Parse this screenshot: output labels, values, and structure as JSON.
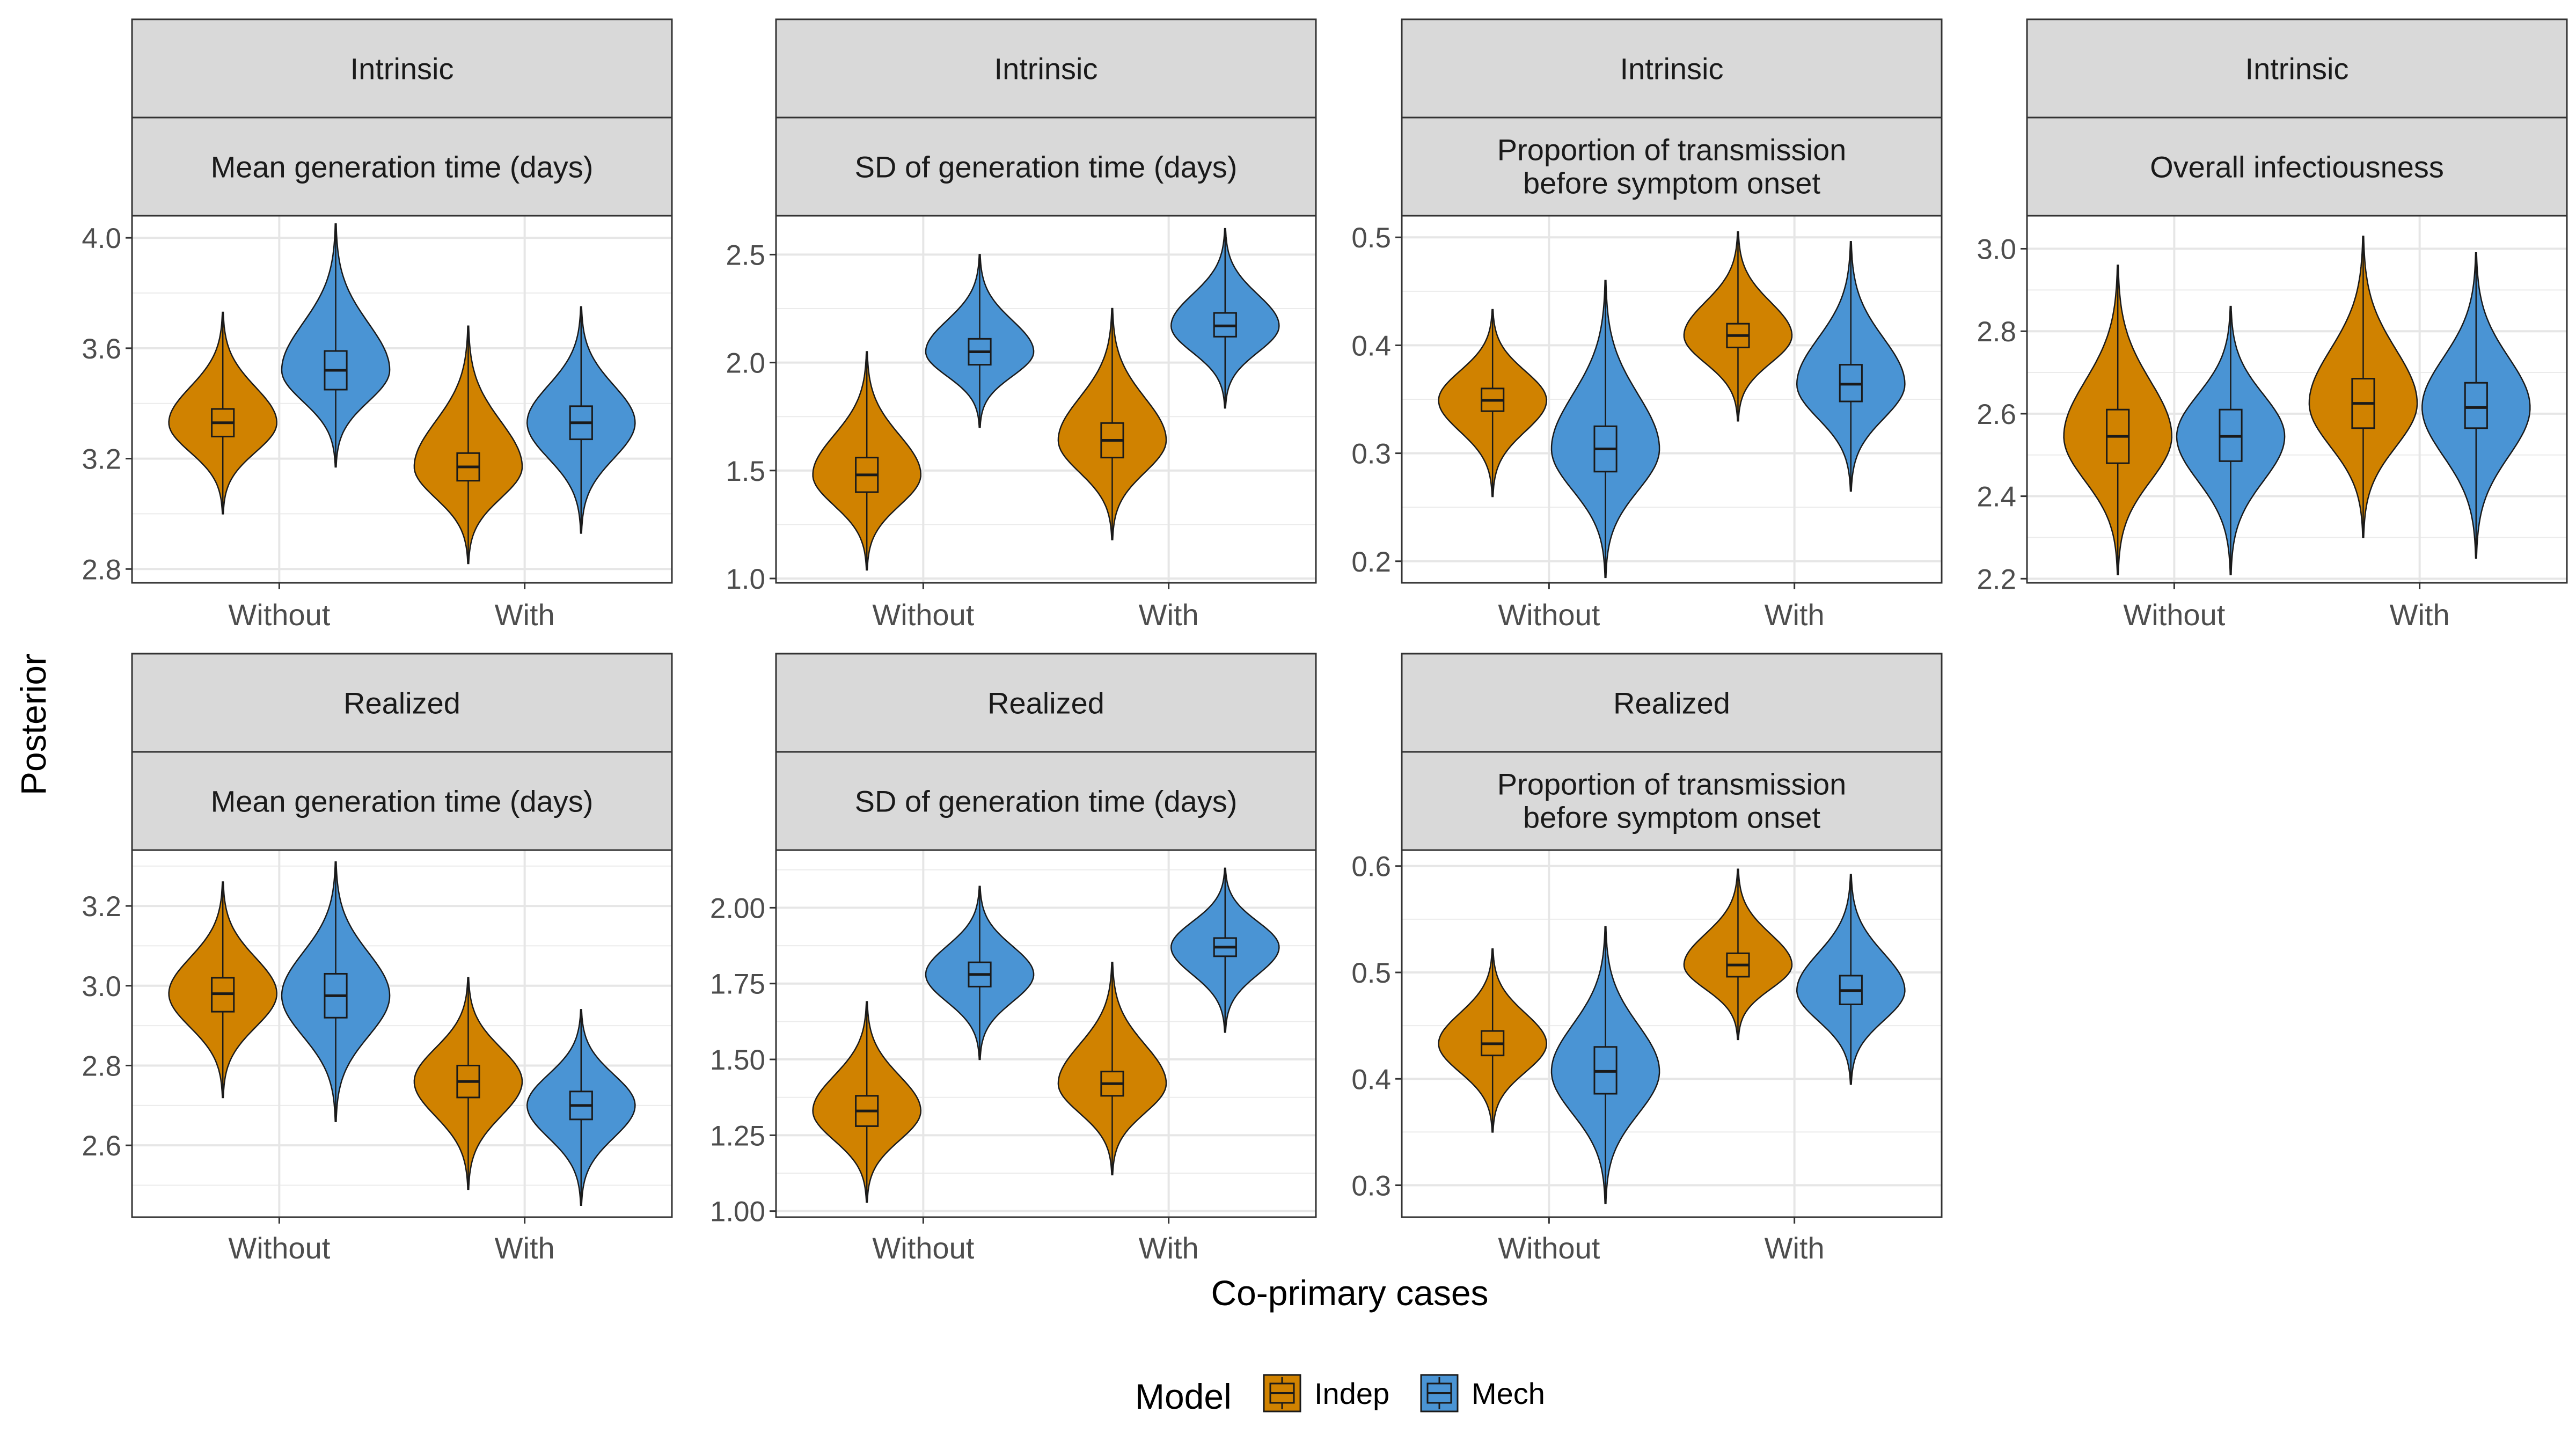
{
  "chart_data": {
    "type": "violin",
    "xlabel": "Co-primary cases",
    "ylabel": "Posterior",
    "categories": [
      "Without",
      "With"
    ],
    "legend": {
      "title": "Model",
      "position": "bottom",
      "items": [
        {
          "name": "Indep",
          "color": "#D08200"
        },
        {
          "name": "Mech",
          "color": "#4A94D4"
        }
      ]
    },
    "grid": true,
    "panels": [
      {
        "strip_top": "Intrinsic",
        "strip_bottom": "Mean generation time (days)",
        "ylim": [
          2.75,
          4.08
        ],
        "yticks": [
          2.8,
          3.2,
          3.6,
          4.0
        ],
        "ytick_labels": [
          "2.8",
          "3.2",
          "3.6",
          "4.0"
        ],
        "series": [
          {
            "name": "Indep",
            "groups": [
              {
                "category": "Without",
                "min": 3.0,
                "q1": 3.28,
                "median": 3.33,
                "q3": 3.38,
                "max": 3.73
              },
              {
                "category": "With",
                "min": 2.82,
                "q1": 3.12,
                "median": 3.17,
                "q3": 3.22,
                "max": 3.68
              }
            ]
          },
          {
            "name": "Mech",
            "groups": [
              {
                "category": "Without",
                "min": 3.17,
                "q1": 3.45,
                "median": 3.52,
                "q3": 3.59,
                "max": 4.05
              },
              {
                "category": "With",
                "min": 2.93,
                "q1": 3.27,
                "median": 3.33,
                "q3": 3.39,
                "max": 3.75
              }
            ]
          }
        ]
      },
      {
        "strip_top": "Intrinsic",
        "strip_bottom": "SD of generation time (days)",
        "ylim": [
          0.98,
          2.68
        ],
        "yticks": [
          1.0,
          1.5,
          2.0,
          2.5
        ],
        "ytick_labels": [
          "1.0",
          "1.5",
          "2.0",
          "2.5"
        ],
        "series": [
          {
            "name": "Indep",
            "groups": [
              {
                "category": "Without",
                "min": 1.04,
                "q1": 1.4,
                "median": 1.48,
                "q3": 1.56,
                "max": 2.05
              },
              {
                "category": "With",
                "min": 1.18,
                "q1": 1.56,
                "median": 1.64,
                "q3": 1.72,
                "max": 2.25
              }
            ]
          },
          {
            "name": "Mech",
            "groups": [
              {
                "category": "Without",
                "min": 1.7,
                "q1": 1.99,
                "median": 2.05,
                "q3": 2.11,
                "max": 2.5
              },
              {
                "category": "With",
                "min": 1.79,
                "q1": 2.12,
                "median": 2.17,
                "q3": 2.23,
                "max": 2.62
              }
            ]
          }
        ]
      },
      {
        "strip_top": "Intrinsic",
        "strip_bottom": "Proportion of transmission before symptom onset",
        "ylim": [
          0.18,
          0.52
        ],
        "yticks": [
          0.2,
          0.3,
          0.4,
          0.5
        ],
        "ytick_labels": [
          "0.2",
          "0.3",
          "0.4",
          "0.5"
        ],
        "series": [
          {
            "name": "Indep",
            "groups": [
              {
                "category": "Without",
                "min": 0.26,
                "q1": 0.339,
                "median": 0.349,
                "q3": 0.36,
                "max": 0.433
              },
              {
                "category": "With",
                "min": 0.33,
                "q1": 0.398,
                "median": 0.409,
                "q3": 0.42,
                "max": 0.505
              }
            ]
          },
          {
            "name": "Mech",
            "groups": [
              {
                "category": "Without",
                "min": 0.185,
                "q1": 0.283,
                "median": 0.304,
                "q3": 0.325,
                "max": 0.46
              },
              {
                "category": "With",
                "min": 0.265,
                "q1": 0.348,
                "median": 0.364,
                "q3": 0.382,
                "max": 0.496
              }
            ]
          }
        ]
      },
      {
        "strip_top": "Intrinsic",
        "strip_bottom": "Overall infectiousness",
        "ylim": [
          2.19,
          3.08
        ],
        "yticks": [
          2.2,
          2.4,
          2.6,
          2.8,
          3.0
        ],
        "ytick_labels": [
          "2.2",
          "2.4",
          "2.6",
          "2.8",
          "3.0"
        ],
        "series": [
          {
            "name": "Indep",
            "groups": [
              {
                "category": "Without",
                "min": 2.21,
                "q1": 2.48,
                "median": 2.545,
                "q3": 2.61,
                "max": 2.96
              },
              {
                "category": "With",
                "min": 2.3,
                "q1": 2.565,
                "median": 2.625,
                "q3": 2.685,
                "max": 3.03
              }
            ]
          },
          {
            "name": "Mech",
            "groups": [
              {
                "category": "Without",
                "min": 2.21,
                "q1": 2.485,
                "median": 2.545,
                "q3": 2.61,
                "max": 2.86
              },
              {
                "category": "With",
                "min": 2.25,
                "q1": 2.565,
                "median": 2.615,
                "q3": 2.675,
                "max": 2.99
              }
            ]
          }
        ]
      },
      {
        "strip_top": "Realized",
        "strip_bottom": "Mean generation time (days)",
        "ylim": [
          2.42,
          3.34
        ],
        "yticks": [
          2.6,
          2.8,
          3.0,
          3.2
        ],
        "ytick_labels": [
          "2.6",
          "2.8",
          "3.0",
          "3.2"
        ],
        "series": [
          {
            "name": "Indep",
            "groups": [
              {
                "category": "Without",
                "min": 2.72,
                "q1": 2.935,
                "median": 2.98,
                "q3": 3.02,
                "max": 3.26
              },
              {
                "category": "With",
                "min": 2.49,
                "q1": 2.72,
                "median": 2.76,
                "q3": 2.8,
                "max": 3.02
              }
            ]
          },
          {
            "name": "Mech",
            "groups": [
              {
                "category": "Without",
                "min": 2.66,
                "q1": 2.92,
                "median": 2.975,
                "q3": 3.03,
                "max": 3.31
              },
              {
                "category": "With",
                "min": 2.45,
                "q1": 2.665,
                "median": 2.7,
                "q3": 2.735,
                "max": 2.94
              }
            ]
          }
        ]
      },
      {
        "strip_top": "Realized",
        "strip_bottom": "SD of generation time (days)",
        "ylim": [
          0.98,
          2.19
        ],
        "yticks": [
          1.0,
          1.25,
          1.5,
          1.75,
          2.0
        ],
        "ytick_labels": [
          "1.00",
          "1.25",
          "1.50",
          "1.75",
          "2.00"
        ],
        "series": [
          {
            "name": "Indep",
            "groups": [
              {
                "category": "Without",
                "min": 1.03,
                "q1": 1.28,
                "median": 1.33,
                "q3": 1.38,
                "max": 1.69
              },
              {
                "category": "With",
                "min": 1.12,
                "q1": 1.38,
                "median": 1.42,
                "q3": 1.46,
                "max": 1.82
              }
            ]
          },
          {
            "name": "Mech",
            "groups": [
              {
                "category": "Without",
                "min": 1.5,
                "q1": 1.74,
                "median": 1.78,
                "q3": 1.82,
                "max": 2.07
              },
              {
                "category": "With",
                "min": 1.59,
                "q1": 1.84,
                "median": 1.87,
                "q3": 1.9,
                "max": 2.13
              }
            ]
          }
        ]
      },
      {
        "strip_top": "Realized",
        "strip_bottom": "Proportion of transmission before symptom onset",
        "ylim": [
          0.27,
          0.615
        ],
        "yticks": [
          0.3,
          0.4,
          0.5,
          0.6
        ],
        "ytick_labels": [
          "0.3",
          "0.4",
          "0.5",
          "0.6"
        ],
        "series": [
          {
            "name": "Indep",
            "groups": [
              {
                "category": "Without",
                "min": 0.35,
                "q1": 0.422,
                "median": 0.433,
                "q3": 0.445,
                "max": 0.522
              },
              {
                "category": "With",
                "min": 0.437,
                "q1": 0.496,
                "median": 0.507,
                "q3": 0.518,
                "max": 0.597
              }
            ]
          },
          {
            "name": "Mech",
            "groups": [
              {
                "category": "Without",
                "min": 0.283,
                "q1": 0.386,
                "median": 0.407,
                "q3": 0.43,
                "max": 0.543
              },
              {
                "category": "With",
                "min": 0.395,
                "q1": 0.47,
                "median": 0.483,
                "q3": 0.497,
                "max": 0.592
              }
            ]
          }
        ]
      }
    ]
  }
}
